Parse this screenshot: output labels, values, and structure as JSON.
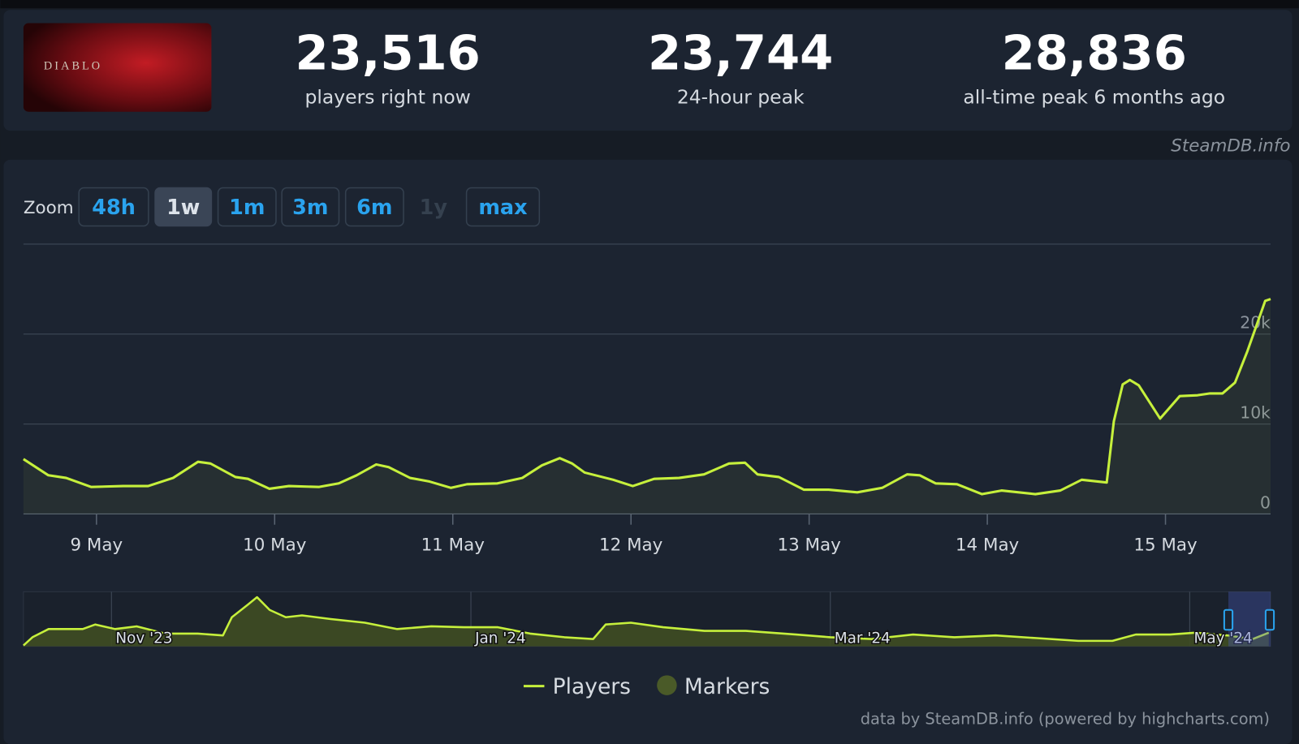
{
  "header": {
    "logo": "DIABLO",
    "stats": [
      {
        "value": "23,516",
        "label": "players right now"
      },
      {
        "value": "23,744",
        "label": "24-hour peak"
      },
      {
        "value": "28,836",
        "label": "all-time peak 6 months ago"
      }
    ],
    "watermark": "SteamDB.info"
  },
  "zoom": {
    "label": "Zoom",
    "buttons": [
      "48h",
      "1w",
      "1m",
      "3m",
      "6m",
      "1y",
      "max"
    ],
    "active": "1w",
    "disabled": "1y"
  },
  "chart_data": [
    {
      "type": "line",
      "x": [
        8.59,
        8.73,
        8.83,
        8.97,
        9.15,
        9.29,
        9.43,
        9.57,
        9.64,
        9.78,
        9.85,
        9.97,
        10.08,
        10.25,
        10.36,
        10.46,
        10.57,
        10.64,
        10.76,
        10.87,
        10.99,
        11.08,
        11.25,
        11.39,
        11.5,
        11.6,
        11.67,
        11.74,
        11.9,
        12.01,
        12.13,
        12.27,
        12.41,
        12.55,
        12.64,
        12.71,
        12.83,
        12.97,
        13.11,
        13.27,
        13.41,
        13.55,
        13.62,
        13.71,
        13.83,
        13.97,
        14.08,
        14.27,
        14.41,
        14.53,
        14.67,
        14.71,
        14.76,
        14.8,
        14.85,
        14.97,
        15.08,
        15.18,
        15.25,
        15.32,
        15.39,
        15.46,
        15.56,
        15.59
      ],
      "series": [
        {
          "name": "Players",
          "color": "#c6f03c",
          "values": [
            6100,
            4300,
            4000,
            3000,
            3100,
            3100,
            4000,
            5800,
            5600,
            4100,
            3900,
            2800,
            3100,
            3000,
            3400,
            4300,
            5500,
            5200,
            4000,
            3600,
            2900,
            3300,
            3400,
            4000,
            5400,
            6200,
            5600,
            4600,
            3800,
            3100,
            3900,
            4000,
            4400,
            5600,
            5700,
            4400,
            4100,
            2700,
            2700,
            2400,
            2900,
            4400,
            4300,
            3400,
            3300,
            2200,
            2600,
            2200,
            2600,
            3800,
            3500,
            10300,
            14400,
            14900,
            14300,
            10600,
            13100,
            13200,
            13400,
            13400,
            14600,
            18100,
            23700,
            23900
          ]
        }
      ],
      "markers": {
        "name": "Markers",
        "color": "#4a5a28"
      },
      "xlim": [
        8.59,
        15.59
      ],
      "xticks": [
        {
          "value": 9,
          "label": "9 May"
        },
        {
          "value": 10,
          "label": "10 May"
        },
        {
          "value": 11,
          "label": "11 May"
        },
        {
          "value": 12,
          "label": "12 May"
        },
        {
          "value": 13,
          "label": "13 May"
        },
        {
          "value": 14,
          "label": "14 May"
        },
        {
          "value": 15,
          "label": "15 May"
        }
      ],
      "ylim": [
        0,
        30000
      ],
      "yticks": [
        0,
        {
          "value": 10000,
          "label": "10k"
        },
        {
          "value": 20000,
          "label": "20k"
        }
      ],
      "grid": true,
      "credit": "data by SteamDB.info (powered by highcharts.com)"
    },
    {
      "type": "area",
      "x": [
        10.51,
        10.56,
        10.65,
        10.84,
        10.91,
        11.02,
        11.14,
        11.3,
        11.48,
        11.62,
        11.67,
        11.76,
        11.81,
        11.88,
        11.97,
        12.06,
        12.22,
        12.41,
        12.59,
        12.78,
        12.96,
        13.15,
        13.33,
        13.52,
        13.68,
        13.75,
        13.89,
        14.07,
        14.3,
        14.53,
        14.81,
        15.0,
        15.23,
        15.46,
        15.69,
        15.92,
        16.15,
        16.38,
        16.57,
        16.7,
        16.89,
        17.03,
        17.21,
        17.35,
        17.44
      ],
      "series": [
        {
          "name": "Players",
          "color": "#c6f03c",
          "values": [
            500,
            5000,
            9500,
            9500,
            12000,
            9500,
            11000,
            7000,
            7000,
            6000,
            16000,
            23000,
            27000,
            20000,
            16000,
            17000,
            15000,
            13000,
            9500,
            11000,
            10500,
            10500,
            7000,
            5000,
            4000,
            12000,
            13000,
            10500,
            8500,
            8500,
            6500,
            5000,
            4000,
            6500,
            5000,
            6000,
            4500,
            3000,
            3000,
            6500,
            6500,
            7500,
            6000,
            4000,
            7500
          ]
        }
      ],
      "xlim": [
        10.51,
        17.45
      ],
      "xticks": [
        {
          "value": 11,
          "label": "Nov '23"
        },
        {
          "value": 13,
          "label": "Jan '24"
        },
        {
          "value": 15,
          "label": "Mar '24"
        },
        {
          "value": 17,
          "label": "May '24"
        }
      ],
      "ylim": [
        0,
        30000
      ]
    }
  ]
}
